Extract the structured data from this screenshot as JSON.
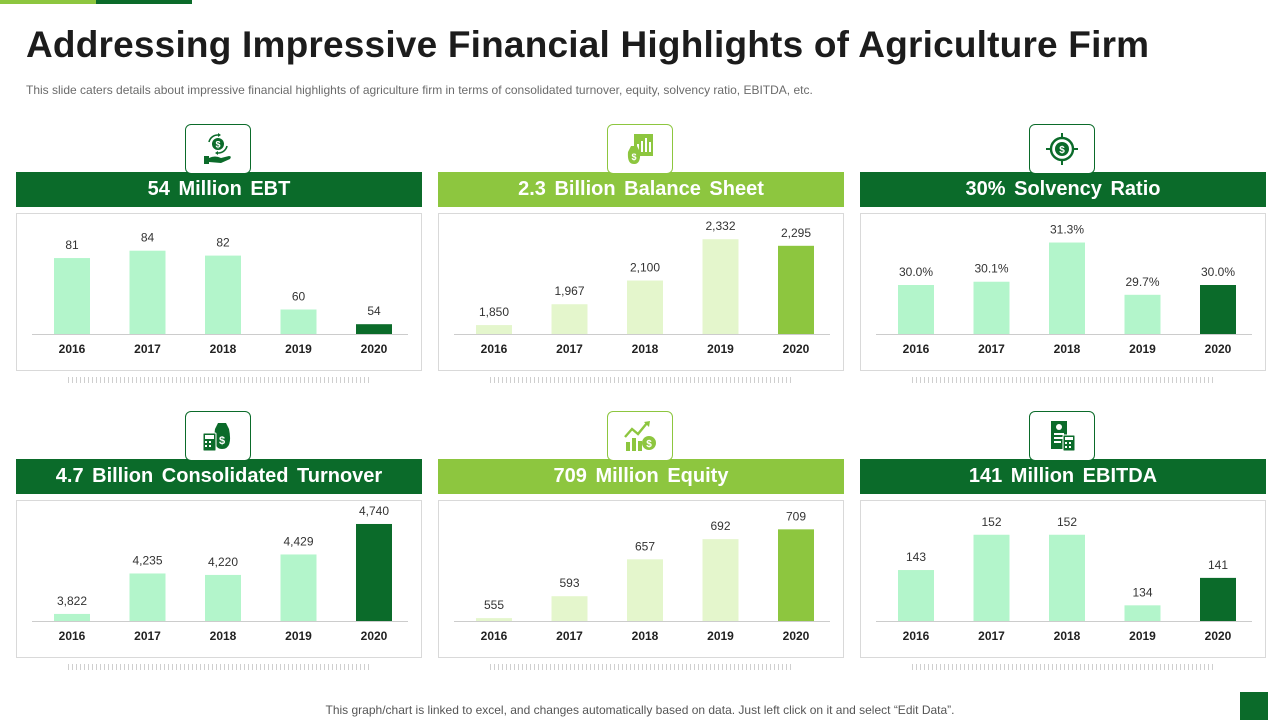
{
  "header": {
    "title": "Addressing Impressive Financial Highlights of Agriculture Firm",
    "subtitle": "This slide caters details about impressive  financial highlights of agriculture firm in terms of consolidated turnover,  equity, solvency ratio, EBITDA,  etc."
  },
  "colors": {
    "dark_green": "#0b6b2a",
    "light_green": "#8dc63f",
    "mint": "#b3f5cb",
    "pale_green": "#e4f6cc"
  },
  "panels": [
    {
      "title": "54 Million  EBT",
      "icon": "money-exchange-hand-icon",
      "header_color": "#0b6b2a",
      "chart_data": {
        "type": "bar",
        "categories": [
          "2016",
          "2017",
          "2018",
          "2019",
          "2020"
        ],
        "values": [
          81,
          84,
          82,
          60,
          54
        ],
        "labels": [
          "81",
          "84",
          "82",
          "60",
          "54"
        ],
        "colors": [
          "#b3f5cb",
          "#b3f5cb",
          "#b3f5cb",
          "#b3f5cb",
          "#0b6b2a"
        ],
        "ylim": [
          50,
          90
        ]
      }
    },
    {
      "title": "2.3 Billion  Balance Sheet",
      "icon": "financial-report-icon",
      "header_color": "#8dc63f",
      "chart_data": {
        "type": "bar",
        "categories": [
          "2016",
          "2017",
          "2018",
          "2019",
          "2020"
        ],
        "values": [
          1850,
          1967,
          2100,
          2332,
          2295
        ],
        "labels": [
          "1,850",
          "1,967",
          "2,100",
          "2,332",
          "2,295"
        ],
        "colors": [
          "#e4f6cc",
          "#e4f6cc",
          "#e4f6cc",
          "#e4f6cc",
          "#8dc63f"
        ],
        "ylim": [
          1800,
          2350
        ]
      }
    },
    {
      "title": "30%  Solvency Ratio",
      "icon": "dollar-target-icon",
      "header_color": "#0b6b2a",
      "chart_data": {
        "type": "bar",
        "categories": [
          "2016",
          "2017",
          "2018",
          "2019",
          "2020"
        ],
        "values": [
          30.0,
          30.1,
          31.3,
          29.7,
          30.0
        ],
        "labels": [
          "30.0%",
          "30.1%",
          "31.3%",
          "29.7%",
          "30.0%"
        ],
        "colors": [
          "#b3f5cb",
          "#b3f5cb",
          "#b3f5cb",
          "#b3f5cb",
          "#0b6b2a"
        ],
        "ylim": [
          28.5,
          31.5
        ]
      }
    },
    {
      "title": "4.7 Billion  Consolidated  Turnover",
      "icon": "money-bag-calculator-icon",
      "header_color": "#0b6b2a",
      "chart_data": {
        "type": "bar",
        "categories": [
          "2016",
          "2017",
          "2018",
          "2019",
          "2020"
        ],
        "values": [
          3822,
          4235,
          4220,
          4429,
          4740
        ],
        "labels": [
          "3,822",
          "4,235",
          "4,220",
          "4,429",
          "4,740"
        ],
        "colors": [
          "#b3f5cb",
          "#b3f5cb",
          "#b3f5cb",
          "#b3f5cb",
          "#0b6b2a"
        ],
        "ylim": [
          3750,
          4750
        ]
      }
    },
    {
      "title": "709 Million  Equity",
      "icon": "growth-chart-coin-icon",
      "header_color": "#8dc63f",
      "chart_data": {
        "type": "bar",
        "categories": [
          "2016",
          "2017",
          "2018",
          "2019",
          "2020"
        ],
        "values": [
          555,
          593,
          657,
          692,
          709
        ],
        "labels": [
          "555",
          "593",
          "657",
          "692",
          "709"
        ],
        "colors": [
          "#e4f6cc",
          "#e4f6cc",
          "#e4f6cc",
          "#e4f6cc",
          "#8dc63f"
        ],
        "ylim": [
          550,
          720
        ]
      }
    },
    {
      "title": "141 Million  EBITDA",
      "icon": "invoice-calculator-icon",
      "header_color": "#0b6b2a",
      "chart_data": {
        "type": "bar",
        "categories": [
          "2016",
          "2017",
          "2018",
          "2019",
          "2020"
        ],
        "values": [
          143,
          152,
          152,
          134,
          141
        ],
        "labels": [
          "143",
          "152",
          "152",
          "134",
          "141"
        ],
        "colors": [
          "#b3f5cb",
          "#b3f5cb",
          "#b3f5cb",
          "#b3f5cb",
          "#0b6b2a"
        ],
        "ylim": [
          130,
          155
        ]
      }
    }
  ],
  "footer": {
    "note": "This graph/chart is linked to excel,  and changes automatically based on data. Just left click on it and select “Edit Data”."
  }
}
